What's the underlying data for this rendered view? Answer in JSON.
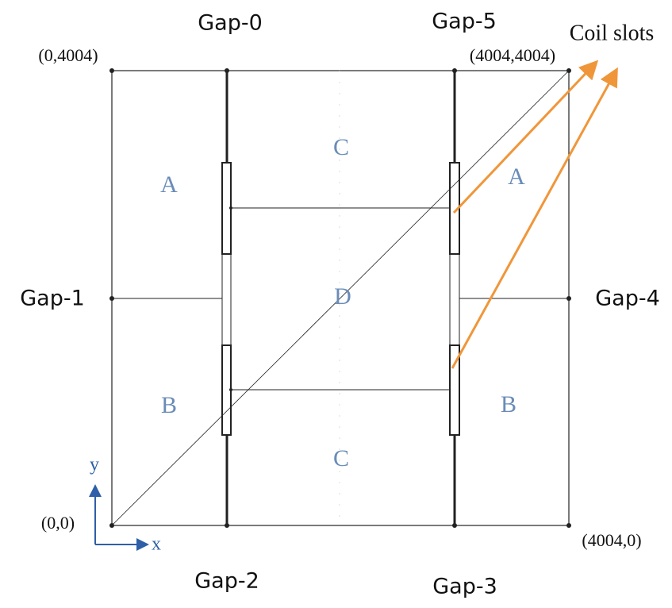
{
  "gaps": [
    "Gap-0",
    "Gap-1",
    "Gap-2",
    "Gap-3",
    "Gap-4",
    "Gap-5"
  ],
  "corners": {
    "top_left": "(0,4004)",
    "top_right": "(4004,4004)",
    "bottom_left": "(0,0)",
    "bottom_right": "(4004,0)"
  },
  "annotation": "Coil slots",
  "regions": {
    "a_left": "A",
    "a_right": "A",
    "b_left": "B",
    "b_right": "B",
    "c_top": "C",
    "c_bottom": "C",
    "d": "D"
  },
  "axes": {
    "x": "x",
    "y": "y"
  }
}
